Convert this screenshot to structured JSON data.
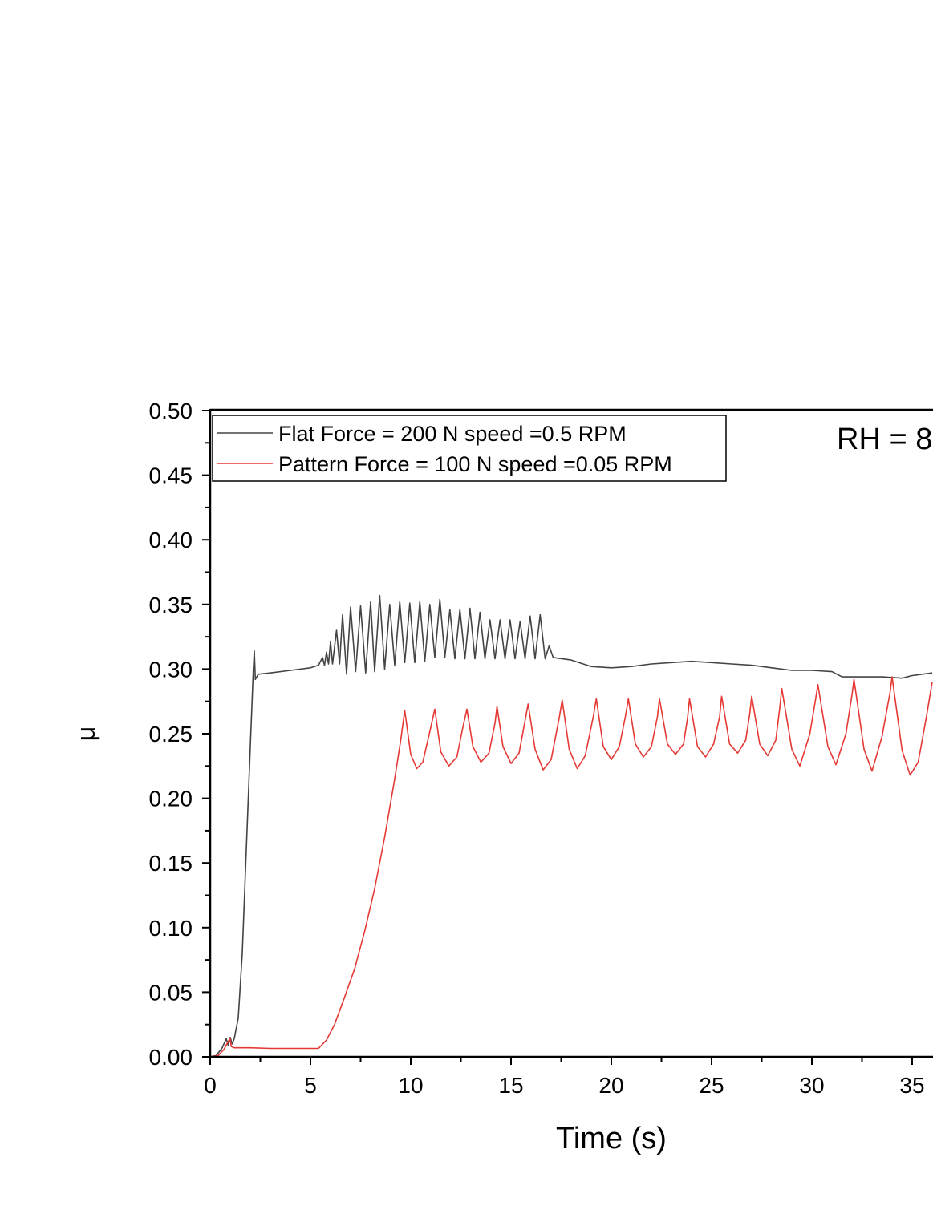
{
  "chart_data": {
    "type": "line",
    "xlabel": "Time (s)",
    "ylabel": "μ",
    "xlim": [
      0,
      36
    ],
    "ylim": [
      0,
      0.5
    ],
    "x_ticks": [
      "0",
      "5",
      "10",
      "15",
      "20",
      "25",
      "30",
      "35"
    ],
    "y_ticks": [
      "0.00",
      "0.05",
      "0.10",
      "0.15",
      "0.20",
      "0.25",
      "0.30",
      "0.35",
      "0.40",
      "0.45",
      "0.50"
    ],
    "annotation": "RH = 8",
    "legend_position": "top-left",
    "series": [
      {
        "name": "Flat Force = 200 N speed =0.5 RPM",
        "color": "#444444",
        "points": [
          [
            0.0,
            0.0
          ],
          [
            0.3,
            0.001
          ],
          [
            0.6,
            0.007
          ],
          [
            0.8,
            0.014
          ],
          [
            0.9,
            0.009
          ],
          [
            1.0,
            0.015
          ],
          [
            1.1,
            0.01
          ],
          [
            1.2,
            0.014
          ],
          [
            1.4,
            0.03
          ],
          [
            1.6,
            0.08
          ],
          [
            1.8,
            0.16
          ],
          [
            2.0,
            0.24
          ],
          [
            2.15,
            0.3
          ],
          [
            2.2,
            0.314
          ],
          [
            2.25,
            0.292
          ],
          [
            2.4,
            0.296
          ],
          [
            3.0,
            0.297
          ],
          [
            4.0,
            0.299
          ],
          [
            5.0,
            0.301
          ],
          [
            5.4,
            0.303
          ],
          [
            5.6,
            0.309
          ],
          [
            5.7,
            0.303
          ],
          [
            5.8,
            0.313
          ],
          [
            5.9,
            0.304
          ],
          [
            6.0,
            0.321
          ],
          [
            6.1,
            0.304
          ],
          [
            6.3,
            0.33
          ],
          [
            6.45,
            0.304
          ],
          [
            6.6,
            0.342
          ],
          [
            6.8,
            0.296
          ],
          [
            7.0,
            0.348
          ],
          [
            7.25,
            0.298
          ],
          [
            7.5,
            0.349
          ],
          [
            7.75,
            0.297
          ],
          [
            8.0,
            0.352
          ],
          [
            8.2,
            0.298
          ],
          [
            8.45,
            0.357
          ],
          [
            8.7,
            0.3
          ],
          [
            8.95,
            0.35
          ],
          [
            9.2,
            0.303
          ],
          [
            9.45,
            0.352
          ],
          [
            9.7,
            0.305
          ],
          [
            9.95,
            0.351
          ],
          [
            10.2,
            0.305
          ],
          [
            10.45,
            0.352
          ],
          [
            10.7,
            0.306
          ],
          [
            10.95,
            0.35
          ],
          [
            11.2,
            0.309
          ],
          [
            11.45,
            0.354
          ],
          [
            11.7,
            0.309
          ],
          [
            11.95,
            0.346
          ],
          [
            12.2,
            0.308
          ],
          [
            12.45,
            0.346
          ],
          [
            12.7,
            0.308
          ],
          [
            12.95,
            0.347
          ],
          [
            13.2,
            0.308
          ],
          [
            13.45,
            0.344
          ],
          [
            13.7,
            0.308
          ],
          [
            13.95,
            0.338
          ],
          [
            14.2,
            0.308
          ],
          [
            14.45,
            0.338
          ],
          [
            14.7,
            0.308
          ],
          [
            14.95,
            0.338
          ],
          [
            15.2,
            0.308
          ],
          [
            15.45,
            0.337
          ],
          [
            15.7,
            0.308
          ],
          [
            15.95,
            0.341
          ],
          [
            16.2,
            0.308
          ],
          [
            16.45,
            0.342
          ],
          [
            16.7,
            0.308
          ],
          [
            16.9,
            0.318
          ],
          [
            17.1,
            0.309
          ],
          [
            18.0,
            0.307
          ],
          [
            19.0,
            0.302
          ],
          [
            20.0,
            0.301
          ],
          [
            21.0,
            0.302
          ],
          [
            22.0,
            0.304
          ],
          [
            23.0,
            0.305
          ],
          [
            24.0,
            0.306
          ],
          [
            25.0,
            0.305
          ],
          [
            26.0,
            0.304
          ],
          [
            27.0,
            0.303
          ],
          [
            28.0,
            0.301
          ],
          [
            29.0,
            0.299
          ],
          [
            30.0,
            0.299
          ],
          [
            31.0,
            0.298
          ],
          [
            31.5,
            0.294
          ],
          [
            32.5,
            0.294
          ],
          [
            33.5,
            0.294
          ],
          [
            34.5,
            0.293
          ],
          [
            35.0,
            0.295
          ],
          [
            36.0,
            0.297
          ]
        ]
      },
      {
        "name": "Pattern Force = 100 N speed =0.05 RPM",
        "color": "#e53935",
        "points": [
          [
            0.0,
            0.0
          ],
          [
            0.4,
            0.001
          ],
          [
            0.7,
            0.006
          ],
          [
            0.9,
            0.012
          ],
          [
            1.0,
            0.014
          ],
          [
            1.05,
            0.008
          ],
          [
            1.2,
            0.007
          ],
          [
            2.0,
            0.007
          ],
          [
            3.0,
            0.0065
          ],
          [
            4.0,
            0.0065
          ],
          [
            5.0,
            0.0065
          ],
          [
            5.4,
            0.0065
          ],
          [
            5.8,
            0.013
          ],
          [
            6.2,
            0.025
          ],
          [
            6.7,
            0.046
          ],
          [
            7.2,
            0.068
          ],
          [
            7.7,
            0.097
          ],
          [
            8.2,
            0.13
          ],
          [
            8.7,
            0.17
          ],
          [
            9.2,
            0.215
          ],
          [
            9.5,
            0.245
          ],
          [
            9.7,
            0.268
          ],
          [
            10.0,
            0.234
          ],
          [
            10.3,
            0.223
          ],
          [
            10.6,
            0.228
          ],
          [
            11.0,
            0.255
          ],
          [
            11.2,
            0.269
          ],
          [
            11.5,
            0.236
          ],
          [
            11.9,
            0.225
          ],
          [
            12.3,
            0.232
          ],
          [
            12.6,
            0.255
          ],
          [
            12.8,
            0.269
          ],
          [
            13.1,
            0.24
          ],
          [
            13.5,
            0.228
          ],
          [
            13.9,
            0.235
          ],
          [
            14.2,
            0.258
          ],
          [
            14.3,
            0.271
          ],
          [
            14.6,
            0.24
          ],
          [
            15.0,
            0.227
          ],
          [
            15.4,
            0.235
          ],
          [
            15.7,
            0.26
          ],
          [
            15.85,
            0.273
          ],
          [
            16.2,
            0.238
          ],
          [
            16.6,
            0.222
          ],
          [
            17.0,
            0.23
          ],
          [
            17.4,
            0.262
          ],
          [
            17.55,
            0.276
          ],
          [
            17.9,
            0.238
          ],
          [
            18.3,
            0.223
          ],
          [
            18.7,
            0.233
          ],
          [
            19.1,
            0.263
          ],
          [
            19.25,
            0.277
          ],
          [
            19.6,
            0.24
          ],
          [
            20.0,
            0.23
          ],
          [
            20.4,
            0.24
          ],
          [
            20.7,
            0.263
          ],
          [
            20.85,
            0.277
          ],
          [
            21.2,
            0.242
          ],
          [
            21.6,
            0.232
          ],
          [
            22.0,
            0.24
          ],
          [
            22.3,
            0.263
          ],
          [
            22.4,
            0.277
          ],
          [
            22.8,
            0.242
          ],
          [
            23.2,
            0.234
          ],
          [
            23.6,
            0.242
          ],
          [
            23.8,
            0.262
          ],
          [
            23.9,
            0.277
          ],
          [
            24.3,
            0.24
          ],
          [
            24.7,
            0.232
          ],
          [
            25.1,
            0.242
          ],
          [
            25.4,
            0.263
          ],
          [
            25.5,
            0.279
          ],
          [
            25.9,
            0.242
          ],
          [
            26.3,
            0.235
          ],
          [
            26.7,
            0.245
          ],
          [
            26.9,
            0.265
          ],
          [
            27.0,
            0.279
          ],
          [
            27.4,
            0.242
          ],
          [
            27.8,
            0.233
          ],
          [
            28.2,
            0.245
          ],
          [
            28.4,
            0.27
          ],
          [
            28.5,
            0.285
          ],
          [
            29.0,
            0.238
          ],
          [
            29.4,
            0.225
          ],
          [
            29.9,
            0.25
          ],
          [
            30.2,
            0.278
          ],
          [
            30.3,
            0.288
          ],
          [
            30.8,
            0.24
          ],
          [
            31.2,
            0.226
          ],
          [
            31.7,
            0.25
          ],
          [
            32.0,
            0.28
          ],
          [
            32.1,
            0.292
          ],
          [
            32.6,
            0.238
          ],
          [
            33.0,
            0.221
          ],
          [
            33.5,
            0.248
          ],
          [
            33.9,
            0.282
          ],
          [
            34.0,
            0.294
          ],
          [
            34.5,
            0.237
          ],
          [
            34.9,
            0.218
          ],
          [
            35.3,
            0.228
          ],
          [
            35.7,
            0.262
          ],
          [
            36.0,
            0.29
          ]
        ]
      }
    ]
  }
}
